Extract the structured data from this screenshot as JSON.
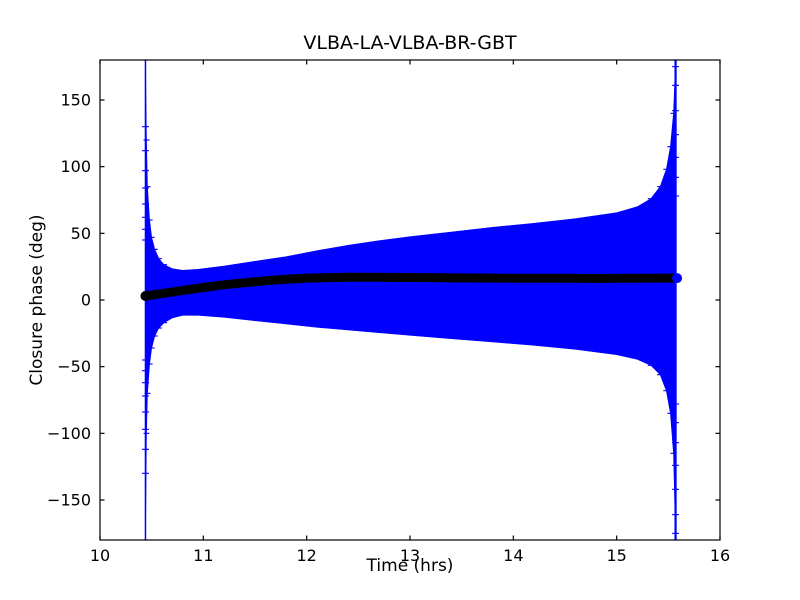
{
  "window": {
    "background": "#ffffff"
  },
  "chart_data": {
    "type": "line",
    "title": "VLBA-LA-VLBA-BR-GBT",
    "xlabel": "Time (hrs)",
    "ylabel": "Closure phase (deg)",
    "xlim": [
      10,
      16
    ],
    "ylim": [
      -180,
      180
    ],
    "xticks": [
      10,
      11,
      12,
      13,
      14,
      15,
      16
    ],
    "yticks": [
      -150,
      -100,
      -50,
      0,
      50,
      100,
      150
    ],
    "grid": false,
    "legend_position": "none",
    "colors": {
      "envelope": "#0000ff",
      "points": "#000000",
      "axes": "#000000",
      "background": "#ffffff"
    },
    "series": [
      {
        "name": "closure-phase-points",
        "type": "scatter-line",
        "color": "#000000",
        "x": [
          10.44,
          10.6,
          10.8,
          11.0,
          11.2,
          11.4,
          11.6,
          11.8,
          12.0,
          12.2,
          12.4,
          12.7,
          13.0,
          13.3,
          13.6,
          14.0,
          14.4,
          14.8,
          15.2,
          15.57
        ],
        "y": [
          3.0,
          4.8,
          7.2,
          9.4,
          11.4,
          13.0,
          14.4,
          15.5,
          16.3,
          16.8,
          17.0,
          17.0,
          16.9,
          16.7,
          16.5,
          16.3,
          16.25,
          16.2,
          16.25,
          16.4
        ]
      },
      {
        "name": "error-envelope",
        "type": "band",
        "color": "#0000ff",
        "x": [
          10.44,
          10.45,
          10.46,
          10.48,
          10.5,
          10.53,
          10.57,
          10.62,
          10.7,
          10.8,
          10.95,
          11.2,
          11.5,
          11.8,
          12.1,
          12.4,
          12.7,
          13.0,
          13.4,
          13.8,
          14.2,
          14.6,
          15.0,
          15.2,
          15.33,
          15.42,
          15.48,
          15.52,
          15.55,
          15.57
        ],
        "upper": [
          180,
          120,
          85,
          60,
          47,
          38,
          31,
          26.5,
          23.5,
          22.3,
          23.0,
          25.5,
          29,
          32.5,
          37,
          41,
          44.5,
          47.5,
          51,
          54.5,
          57.5,
          61,
          65.5,
          70,
          76,
          85,
          98,
          115,
          140,
          180
        ],
        "lower": [
          -180,
          -100,
          -70,
          -48,
          -36,
          -27,
          -21,
          -17,
          -13.5,
          -11.5,
          -11.5,
          -13,
          -15.5,
          -18,
          -20.5,
          -22.5,
          -24.5,
          -26.5,
          -29,
          -31.5,
          -34,
          -37,
          -41,
          -44.5,
          -49,
          -56,
          -68,
          -85,
          -115,
          -180
        ]
      },
      {
        "name": "first-errorbar",
        "type": "vline",
        "color": "#0000ff",
        "x": 10.44,
        "from": -180,
        "to": 180
      },
      {
        "name": "last-errorbar",
        "type": "vline",
        "color": "#0000ff",
        "x": 15.57,
        "from": -180,
        "to": 180
      }
    ]
  }
}
